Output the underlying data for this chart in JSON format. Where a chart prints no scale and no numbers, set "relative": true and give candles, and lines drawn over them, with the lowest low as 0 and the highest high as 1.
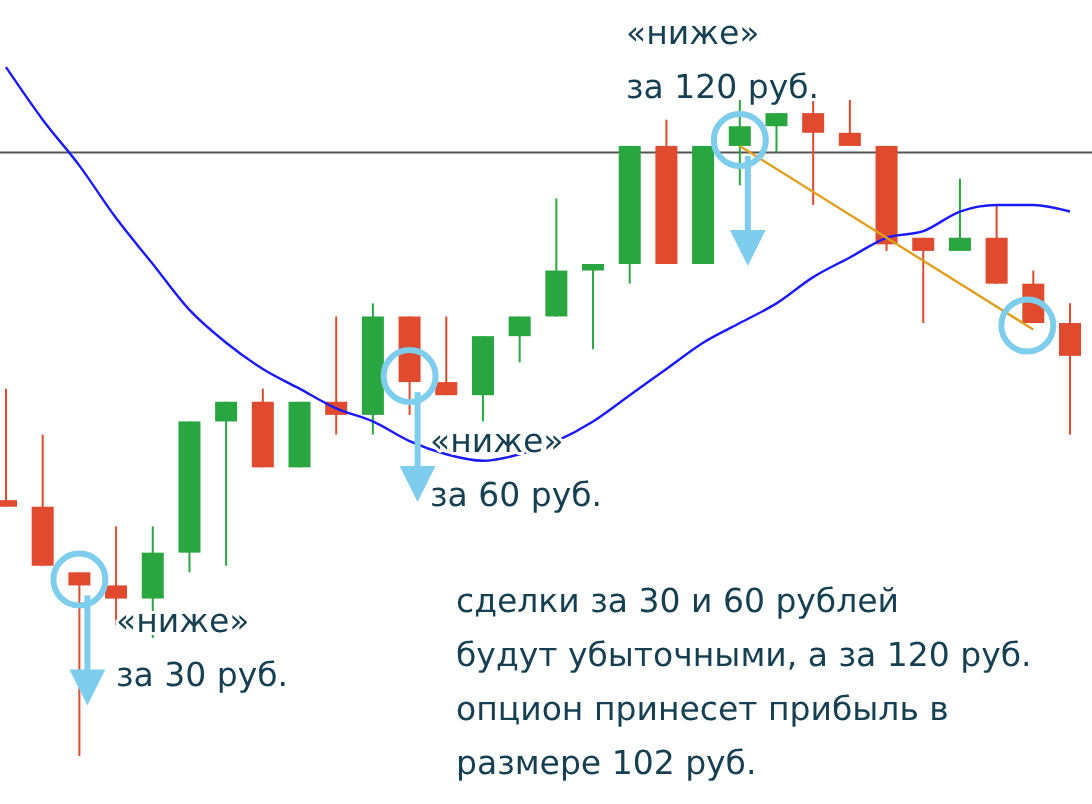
{
  "chart_data": {
    "type": "candlestick",
    "relative": true,
    "categories": [
      null,
      null,
      null,
      null,
      null,
      null,
      null,
      null,
      null,
      null,
      null,
      null,
      null,
      null,
      null,
      null,
      null,
      null,
      null,
      null,
      null,
      null,
      null,
      null,
      null,
      null,
      null,
      null,
      null,
      null
    ],
    "ohlc": [
      [
        0.39,
        0.56,
        0.38,
        0.38
      ],
      [
        0.38,
        0.49,
        0.29,
        0.29
      ],
      [
        0.28,
        0.28,
        0,
        0.26
      ],
      [
        0.26,
        0.35,
        0.2,
        0.24
      ],
      [
        0.24,
        0.35,
        0.18,
        0.31
      ],
      [
        0.31,
        0.51,
        0.28,
        0.51
      ],
      [
        0.51,
        0.54,
        0.29,
        0.54
      ],
      [
        0.54,
        0.56,
        0.44,
        0.44
      ],
      [
        0.44,
        0.54,
        0.44,
        0.54
      ],
      [
        0.54,
        0.67,
        0.49,
        0.52
      ],
      [
        0.52,
        0.69,
        0.49,
        0.67
      ],
      [
        0.67,
        0.67,
        0.52,
        0.57
      ],
      [
        0.57,
        0.67,
        0.55,
        0.55
      ],
      [
        0.55,
        0.64,
        0.51,
        0.64
      ],
      [
        0.64,
        0.67,
        0.6,
        0.67
      ],
      [
        0.67,
        0.85,
        0.67,
        0.74
      ],
      [
        0.74,
        0.75,
        0.62,
        0.75
      ],
      [
        0.75,
        0.93,
        0.72,
        0.93
      ],
      [
        0.93,
        0.97,
        0.75,
        0.75
      ],
      [
        0.75,
        0.93,
        0.75,
        0.93
      ],
      [
        0.93,
        1,
        0.87,
        0.96
      ],
      [
        0.96,
        0.98,
        0.92,
        0.98
      ],
      [
        0.98,
        1,
        0.84,
        0.95
      ],
      [
        0.95,
        1,
        0.93,
        0.93
      ],
      [
        0.93,
        0.93,
        0.77,
        0.78
      ],
      [
        0.79,
        0.79,
        0.66,
        0.77
      ],
      [
        0.77,
        0.88,
        0.77,
        0.79
      ],
      [
        0.79,
        0.84,
        0.72,
        0.72
      ],
      [
        0.72,
        0.74,
        0.66,
        0.66
      ],
      [
        0.66,
        0.69,
        0.49,
        0.61
      ]
    ],
    "colors": [
      "#e04a2f",
      "#e04a2f",
      "#e04a2f",
      "#e04a2f",
      "#2aa641",
      "#2aa641",
      "#2aa641",
      "#e04a2f",
      "#2aa641",
      "#e04a2f",
      "#2aa641",
      "#e04a2f",
      "#e04a2f",
      "#2aa641",
      "#2aa641",
      "#2aa641",
      "#2aa641",
      "#2aa641",
      "#e04a2f",
      "#2aa641",
      "#2aa641",
      "#2aa641",
      "#e04a2f",
      "#e04a2f",
      "#e04a2f",
      "#e04a2f",
      "#2aa641",
      "#e04a2f",
      "#e04a2f",
      "#e04a2f"
    ],
    "series": [
      {
        "type": "line",
        "color": "#1a1aff",
        "values": [
          1.05,
          0.97,
          0.9,
          0.82,
          0.75,
          0.68,
          0.63,
          0.59,
          0.56,
          0.53,
          0.51,
          0.48,
          0.46,
          0.45,
          0.46,
          0.48,
          0.51,
          0.55,
          0.59,
          0.63,
          0.66,
          0.69,
          0.73,
          0.76,
          0.79,
          0.8,
          0.83,
          0.84,
          0.84,
          0.83
        ]
      },
      {
        "type": "line",
        "color": "#e0a020",
        "values": [
          null,
          null,
          null,
          null,
          null,
          null,
          null,
          null,
          null,
          null,
          null,
          null,
          null,
          null,
          null,
          null,
          null,
          null,
          null,
          null,
          0.93,
          null,
          null,
          null,
          null,
          null,
          null,
          null,
          0.65,
          null
        ]
      }
    ],
    "ref_lines": [
      {
        "axis": "y",
        "value": 0.92,
        "color": "#555555"
      }
    ],
    "annotations": [
      "«ниже»\nза 30 руб.",
      "«ниже»\nза 60 руб.",
      "«ниже»\nза 120 руб.",
      "сделки за 30 и 60 рублей\nбудут убыточными, а за 120 руб.\nопцион принесет прибыль в\nразмере 102 руб."
    ]
  }
}
